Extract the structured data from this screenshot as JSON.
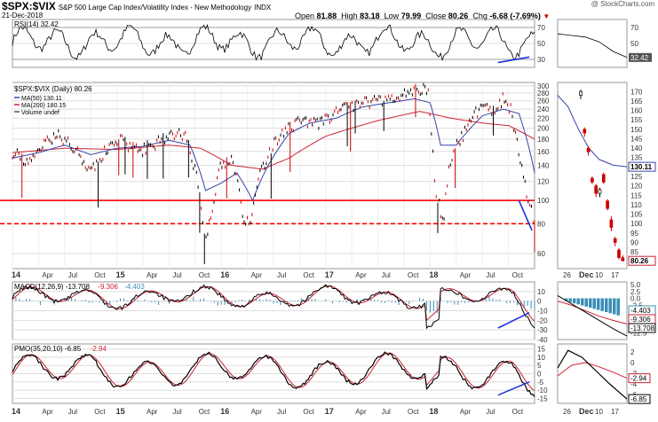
{
  "header": {
    "symbol": "$SPX:$VIX",
    "description": "S&P 500 Large Cap Index/Volatility Index - New Methodology",
    "exchange": "INDX",
    "date": "21-Dec-2018",
    "copyright": "@ StockCharts.com",
    "open_label": "Open",
    "open": "81.88",
    "high_label": "High",
    "high": "83.18",
    "low_label": "Low",
    "low": "79.99",
    "close_label": "Close",
    "close": "80.26",
    "chg_label": "Chg",
    "chg": "-6.68 (-7.69%)",
    "chg_arrow": "▼"
  },
  "colors": {
    "price_up": "#000000",
    "price_down": "#cc0000",
    "ma50": "#3344aa",
    "ma200": "#cc2233",
    "support": "#ff0000",
    "trendline": "#2233dd",
    "macd_hist": "#3a8fb7",
    "grid": "#dddddd"
  },
  "chart_data": [
    {
      "type": "line",
      "panel": "indicator-top",
      "title": "RSI(14) 32.42",
      "name": "RSI(14)",
      "last": 32.42,
      "ylim": [
        20,
        80
      ],
      "ticks": [
        30,
        50,
        70
      ],
      "right_ticks": [
        "70",
        "50",
        "30"
      ],
      "right_last_label": "32.42",
      "guides": [
        30,
        70
      ],
      "trendline": {
        "from": [
          0.93,
          26
        ],
        "to": [
          0.99,
          33
        ]
      }
    },
    {
      "type": "line",
      "panel": "price",
      "title": "$SPX:$VIX (Daily) 80.26",
      "legend": [
        {
          "name": "MA(50) 130.11",
          "color": "#3344aa"
        },
        {
          "name": "MA(200) 180.15",
          "color": "#cc2233"
        },
        {
          "name": "Volume undef",
          "color": "#555555"
        }
      ],
      "yscale": "log",
      "ylim": [
        52,
        310
      ],
      "y_ticks": [
        60,
        80,
        100,
        120,
        140,
        160,
        180,
        200,
        220,
        240,
        260,
        280,
        300
      ],
      "right_ticks": [
        "170",
        "165",
        "160",
        "155",
        "150",
        "145",
        "140",
        "135",
        "130",
        "125",
        "120",
        "115",
        "110",
        "105",
        "100",
        "95",
        "90",
        "85",
        "80"
      ],
      "right_last_labels": [
        "130.11",
        "80.26"
      ],
      "horizontal_lines": [
        {
          "value": 100,
          "style": "solid"
        },
        {
          "value": 80,
          "style": "dashed"
        }
      ],
      "x_ticks": [
        "14",
        "Apr",
        "Jul",
        "Oct",
        "15",
        "Apr",
        "Jul",
        "Oct",
        "16",
        "Apr",
        "Jul",
        "Oct",
        "17",
        "Apr",
        "Jul",
        "Oct",
        "18",
        "Apr",
        "Jul",
        "Oct"
      ],
      "right_x_ticks": [
        "26",
        "Dec",
        "10",
        "17"
      ],
      "price_keypoints": [
        [
          0.0,
          160
        ],
        [
          0.03,
          140
        ],
        [
          0.06,
          175
        ],
        [
          0.09,
          185
        ],
        [
          0.12,
          165
        ],
        [
          0.15,
          130
        ],
        [
          0.18,
          165
        ],
        [
          0.21,
          178
        ],
        [
          0.24,
          160
        ],
        [
          0.27,
          170
        ],
        [
          0.3,
          185
        ],
        [
          0.33,
          190
        ],
        [
          0.355,
          120
        ],
        [
          0.37,
          65
        ],
        [
          0.385,
          100
        ],
        [
          0.4,
          140
        ],
        [
          0.42,
          150
        ],
        [
          0.44,
          90
        ],
        [
          0.455,
          75
        ],
        [
          0.47,
          120
        ],
        [
          0.5,
          170
        ],
        [
          0.53,
          200
        ],
        [
          0.56,
          215
        ],
        [
          0.59,
          210
        ],
        [
          0.62,
          230
        ],
        [
          0.65,
          250
        ],
        [
          0.68,
          260
        ],
        [
          0.71,
          255
        ],
        [
          0.74,
          270
        ],
        [
          0.77,
          285
        ],
        [
          0.795,
          290
        ],
        [
          0.81,
          110
        ],
        [
          0.825,
          80
        ],
        [
          0.84,
          150
        ],
        [
          0.87,
          200
        ],
        [
          0.9,
          250
        ],
        [
          0.92,
          230
        ],
        [
          0.94,
          265
        ],
        [
          0.955,
          240
        ],
        [
          0.97,
          150
        ],
        [
          0.985,
          105
        ],
        [
          1.0,
          80
        ]
      ],
      "ma50_keypoints": [
        [
          0.0,
          150
        ],
        [
          0.05,
          158
        ],
        [
          0.1,
          170
        ],
        [
          0.15,
          155
        ],
        [
          0.2,
          165
        ],
        [
          0.25,
          168
        ],
        [
          0.3,
          178
        ],
        [
          0.34,
          170
        ],
        [
          0.37,
          110
        ],
        [
          0.4,
          118
        ],
        [
          0.43,
          130
        ],
        [
          0.46,
          100
        ],
        [
          0.49,
          140
        ],
        [
          0.53,
          190
        ],
        [
          0.57,
          210
        ],
        [
          0.62,
          220
        ],
        [
          0.67,
          245
        ],
        [
          0.72,
          255
        ],
        [
          0.77,
          265
        ],
        [
          0.8,
          255
        ],
        [
          0.82,
          170
        ],
        [
          0.85,
          170
        ],
        [
          0.9,
          225
        ],
        [
          0.94,
          240
        ],
        [
          0.97,
          230
        ],
        [
          1.0,
          130
        ]
      ],
      "ma200_keypoints": [
        [
          0.0,
          158
        ],
        [
          0.1,
          165
        ],
        [
          0.2,
          163
        ],
        [
          0.3,
          170
        ],
        [
          0.36,
          165
        ],
        [
          0.42,
          140
        ],
        [
          0.48,
          135
        ],
        [
          0.53,
          150
        ],
        [
          0.6,
          185
        ],
        [
          0.7,
          215
        ],
        [
          0.78,
          235
        ],
        [
          0.84,
          220
        ],
        [
          0.9,
          210
        ],
        [
          0.95,
          205
        ],
        [
          1.0,
          180
        ]
      ],
      "trendline": {
        "from": [
          0.97,
          100
        ],
        "to": [
          0.995,
          75
        ]
      },
      "right_panel_candles": [
        {
          "o": 168,
          "c": 170,
          "h": 171,
          "l": 166
        },
        {
          "o": 150,
          "c": 148,
          "h": 151,
          "l": 146
        },
        {
          "o": 140,
          "c": 138,
          "h": 141,
          "l": 136
        },
        {
          "o": 124,
          "c": 122,
          "h": 125,
          "l": 121
        },
        {
          "o": 120,
          "c": 116,
          "h": 121,
          "l": 114
        },
        {
          "o": 116,
          "c": 118,
          "h": 119,
          "l": 114
        },
        {
          "o": 126,
          "c": 122,
          "h": 127,
          "l": 121
        },
        {
          "o": 112,
          "c": 108,
          "h": 113,
          "l": 107
        },
        {
          "o": 102,
          "c": 98,
          "h": 104,
          "l": 96
        },
        {
          "o": 92,
          "c": 90,
          "h": 93,
          "l": 88
        },
        {
          "o": 86,
          "c": 82,
          "h": 87,
          "l": 81
        },
        {
          "o": 81.88,
          "c": 80.26,
          "h": 83.18,
          "l": 79.99
        }
      ]
    },
    {
      "type": "bar",
      "panel": "macd",
      "title": "MACD(12,26,9) -13.708, -9.306, -4.403",
      "legend": [
        {
          "name": "MACD(12,26,9) -13.708",
          "color": "#000000"
        },
        {
          "name": "-9.306",
          "color": "#cc2233"
        },
        {
          "name": "-4.403",
          "color": "#3a8fb7"
        }
      ],
      "ylim": [
        -40,
        20
      ],
      "y_ticks": [
        10,
        0,
        -10,
        -20,
        -30,
        -40
      ],
      "right_ticks": [
        "5.0",
        "2.5",
        "0.0",
        "-2.5",
        "-5.0",
        "-7.5",
        "-10.0",
        "-12.5"
      ],
      "right_last_labels": [
        "-4.403",
        "-9.306",
        "-13.708"
      ],
      "trendline": {
        "from": [
          0.93,
          -28
        ],
        "to": [
          0.99,
          -12
        ]
      }
    },
    {
      "type": "line",
      "panel": "pmo",
      "title": "PMO(35,20,10) -6.85, -2.94",
      "legend": [
        {
          "name": "PMO(35,20,10) -6.85",
          "color": "#000000"
        },
        {
          "name": "-2.94",
          "color": "#cc2233"
        }
      ],
      "ylim": [
        -18,
        18
      ],
      "y_ticks": [
        15,
        10,
        5,
        0,
        -5,
        -10,
        -15
      ],
      "right_ticks": [
        "2",
        "0",
        "-2",
        "-4",
        "-6"
      ],
      "right_last_labels": [
        "-2.94",
        "-6.85"
      ],
      "trendline": {
        "from": [
          0.93,
          -13
        ],
        "to": [
          0.99,
          -5
        ]
      },
      "x_ticks": [
        "14",
        "Apr",
        "Jul",
        "Oct",
        "15",
        "Apr",
        "Jul",
        "Oct",
        "16",
        "Apr",
        "Jul",
        "Oct",
        "17",
        "Apr",
        "Jul",
        "Oct",
        "18",
        "Apr",
        "Jul",
        "Oct"
      ],
      "right_x_ticks": [
        "26",
        "Dec",
        "10",
        "17"
      ]
    }
  ]
}
